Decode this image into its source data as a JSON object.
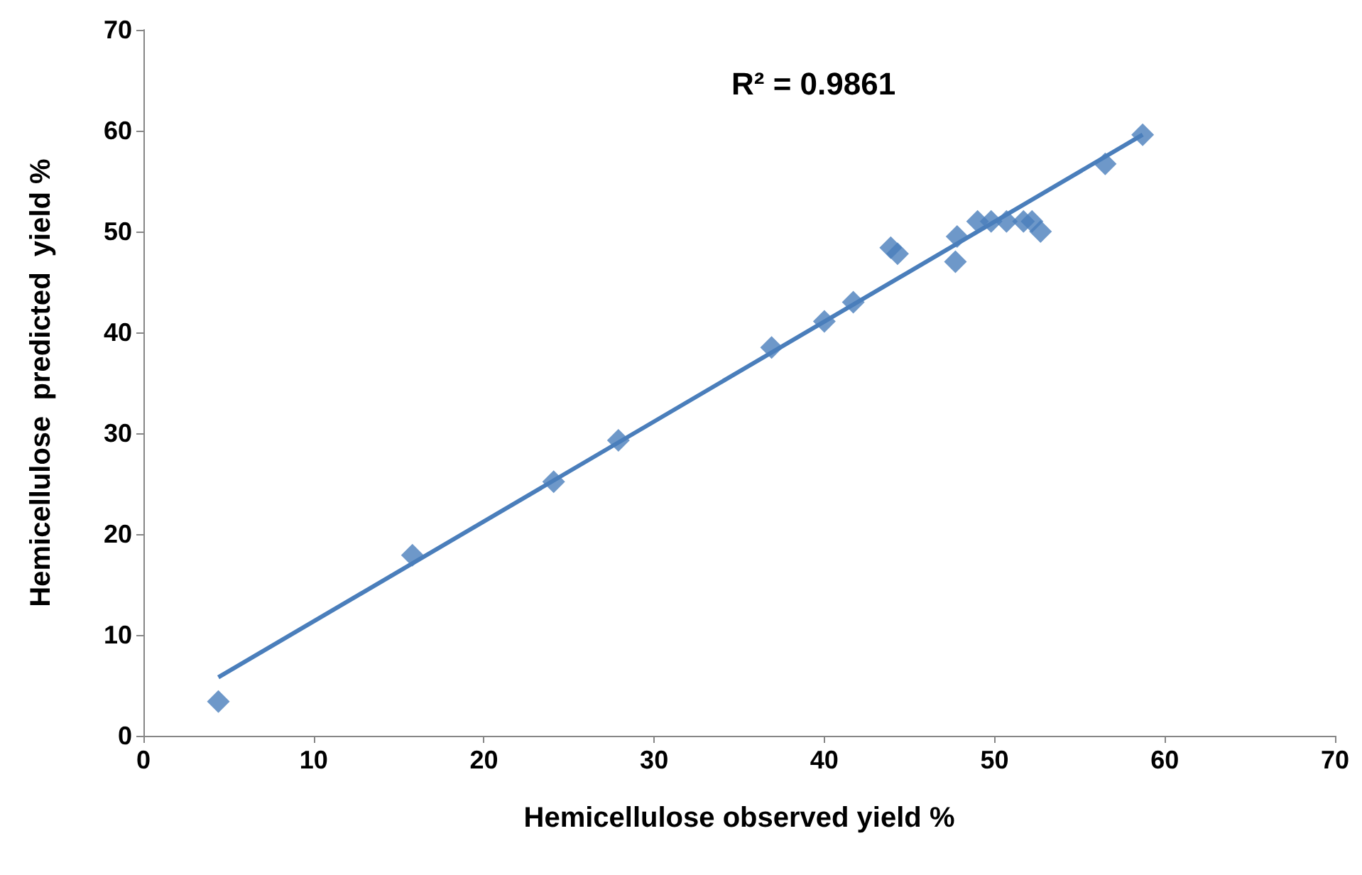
{
  "chart_data": {
    "type": "scatter",
    "xlabel": "Hemicellulose observed yield %",
    "ylabel": "Hemicellulose  predicted  yield %",
    "annotations": [
      "R² = 0.9861"
    ],
    "xlim": [
      0,
      70
    ],
    "xticks": [
      0,
      10,
      20,
      30,
      40,
      50,
      60,
      70
    ],
    "ylim": [
      0,
      70
    ],
    "yticks": [
      0,
      10,
      20,
      30,
      40,
      50,
      60,
      70
    ],
    "grid": false,
    "marker": "diamond",
    "series": [
      {
        "color": "#4a7ebb",
        "x": [
          4.4,
          15.8,
          24.1,
          27.9,
          36.9,
          40.0,
          41.7,
          43.9,
          44.3,
          47.7,
          47.8,
          49.0,
          49.8,
          50.7,
          51.7,
          52.2,
          52.7,
          56.5,
          58.7
        ],
        "values": [
          3.4,
          17.9,
          25.2,
          29.3,
          38.5,
          41.1,
          43.0,
          48.4,
          47.8,
          47.0,
          49.5,
          51.0,
          51.0,
          51.0,
          51.0,
          51.0,
          50.0,
          56.7,
          59.6
        ]
      },
      {
        "type": "line",
        "color": "#4a7ebb",
        "marker": "none",
        "x": [
          4.4,
          58.7
        ],
        "values": [
          5.8,
          59.6
        ]
      }
    ]
  }
}
